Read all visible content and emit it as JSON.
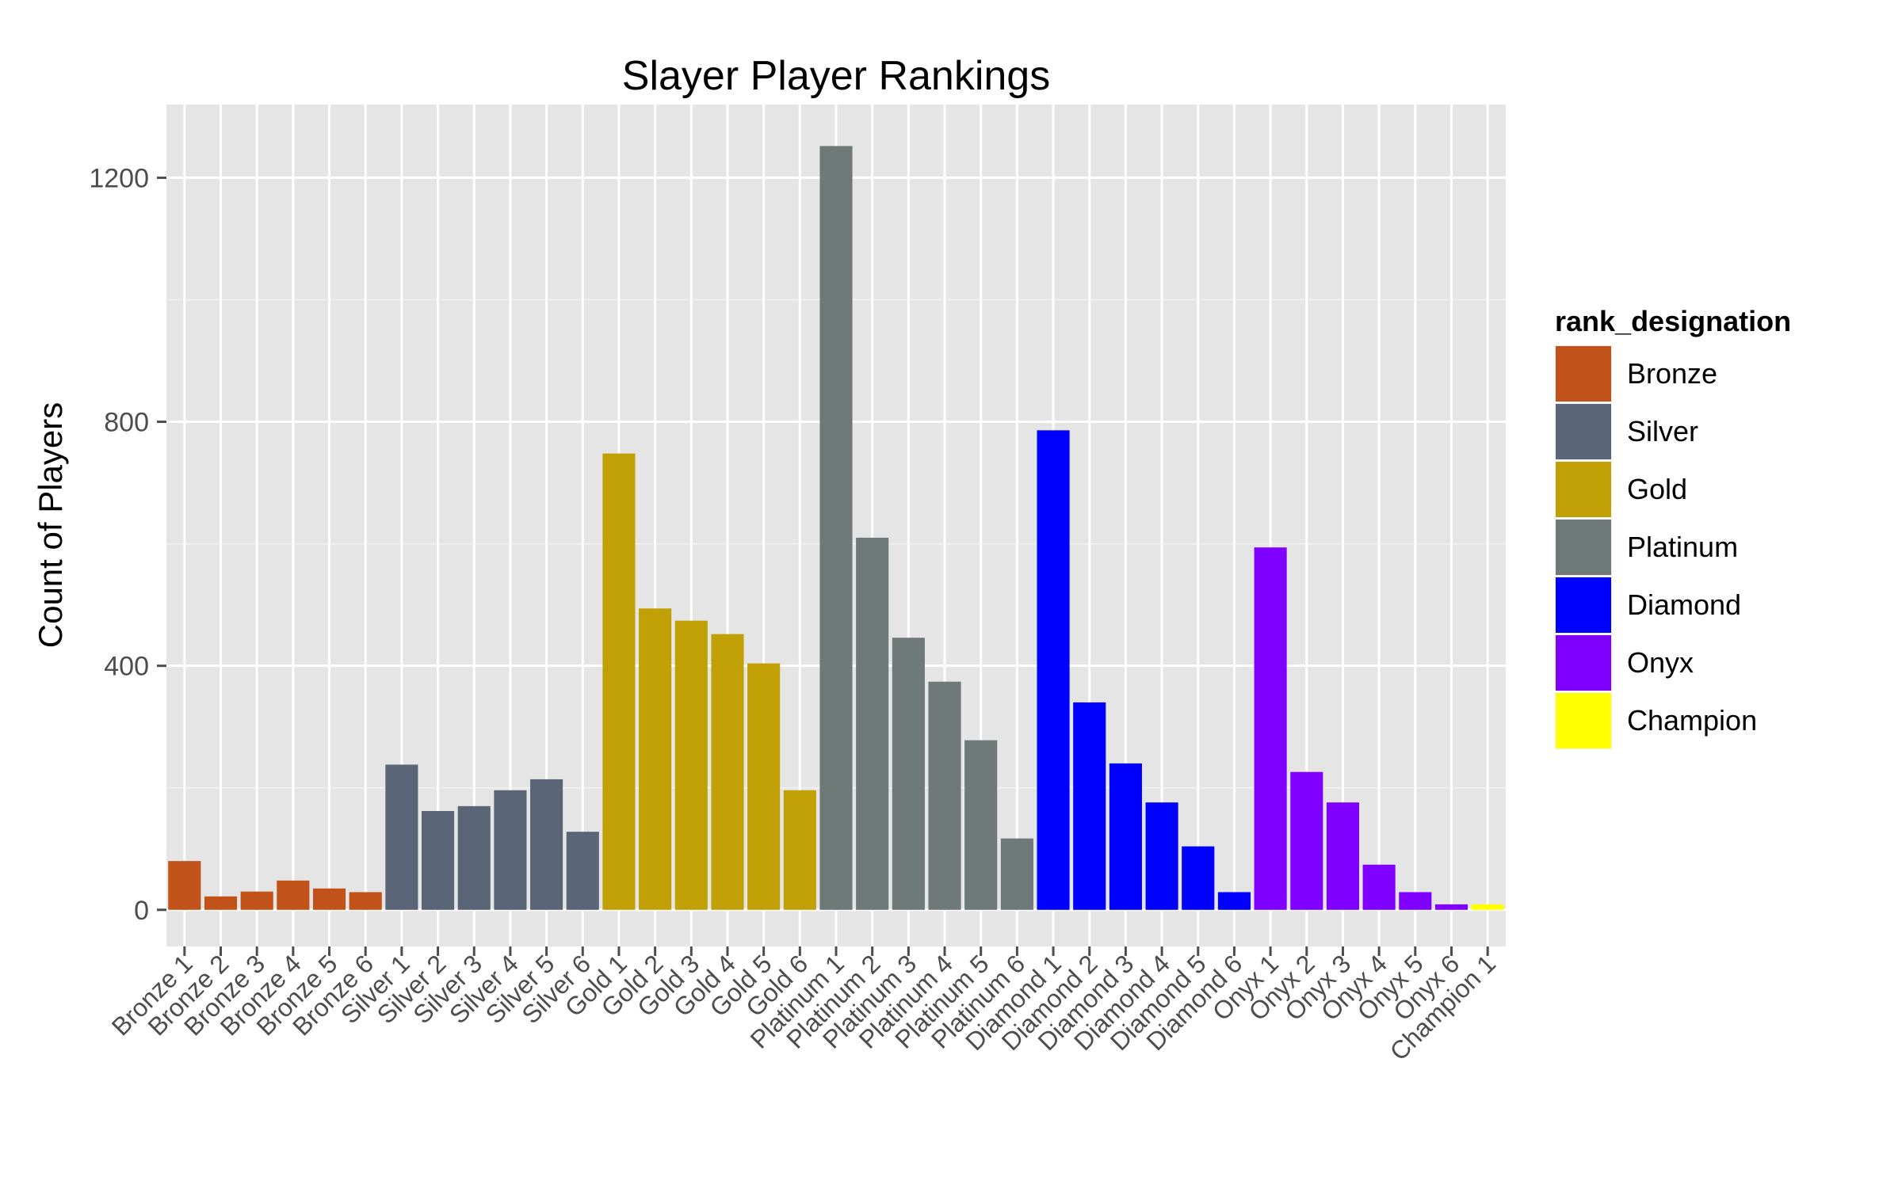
{
  "chart_data": {
    "type": "bar",
    "title": "Slayer Player Rankings",
    "xlabel": "",
    "ylabel": "Count of Players",
    "ylim": [
      -60,
      1320
    ],
    "yticks": [
      0,
      400,
      800,
      1200
    ],
    "grid": true,
    "legend": {
      "title": "rank_designation",
      "placement": "right",
      "entries": [
        {
          "label": "Bronze",
          "color": "#C1531A"
        },
        {
          "label": "Silver",
          "color": "#5B6578"
        },
        {
          "label": "Gold",
          "color": "#C1A006"
        },
        {
          "label": "Platinum",
          "color": "#6F7977"
        },
        {
          "label": "Diamond",
          "color": "#0000FF"
        },
        {
          "label": "Onyx",
          "color": "#8000FF"
        },
        {
          "label": "Champion",
          "color": "#FFFF00"
        }
      ]
    },
    "categories": [
      "Bronze 1",
      "Bronze 2",
      "Bronze 3",
      "Bronze 4",
      "Bronze 5",
      "Bronze 6",
      "Silver 1",
      "Silver 2",
      "Silver 3",
      "Silver 4",
      "Silver 5",
      "Silver 6",
      "Gold 1",
      "Gold 2",
      "Gold 3",
      "Gold 4",
      "Gold 5",
      "Gold 6",
      "Platinum 1",
      "Platinum 2",
      "Platinum 3",
      "Platinum 4",
      "Platinum 5",
      "Platinum 6",
      "Diamond 1",
      "Diamond 2",
      "Diamond 3",
      "Diamond 4",
      "Diamond 5",
      "Diamond 6",
      "Onyx 1",
      "Onyx 2",
      "Onyx 3",
      "Onyx 4",
      "Onyx 5",
      "Onyx 6",
      "Champion 1"
    ],
    "groups": [
      "Bronze",
      "Bronze",
      "Bronze",
      "Bronze",
      "Bronze",
      "Bronze",
      "Silver",
      "Silver",
      "Silver",
      "Silver",
      "Silver",
      "Silver",
      "Gold",
      "Gold",
      "Gold",
      "Gold",
      "Gold",
      "Gold",
      "Platinum",
      "Platinum",
      "Platinum",
      "Platinum",
      "Platinum",
      "Platinum",
      "Diamond",
      "Diamond",
      "Diamond",
      "Diamond",
      "Diamond",
      "Diamond",
      "Onyx",
      "Onyx",
      "Onyx",
      "Onyx",
      "Onyx",
      "Onyx",
      "Champion"
    ],
    "values": [
      80,
      22,
      30,
      48,
      35,
      29,
      238,
      162,
      170,
      196,
      214,
      128,
      748,
      494,
      474,
      452,
      404,
      196,
      1252,
      610,
      446,
      374,
      278,
      117,
      786,
      340,
      240,
      176,
      104,
      29,
      594,
      226,
      176,
      74,
      29,
      9,
      9
    ]
  }
}
